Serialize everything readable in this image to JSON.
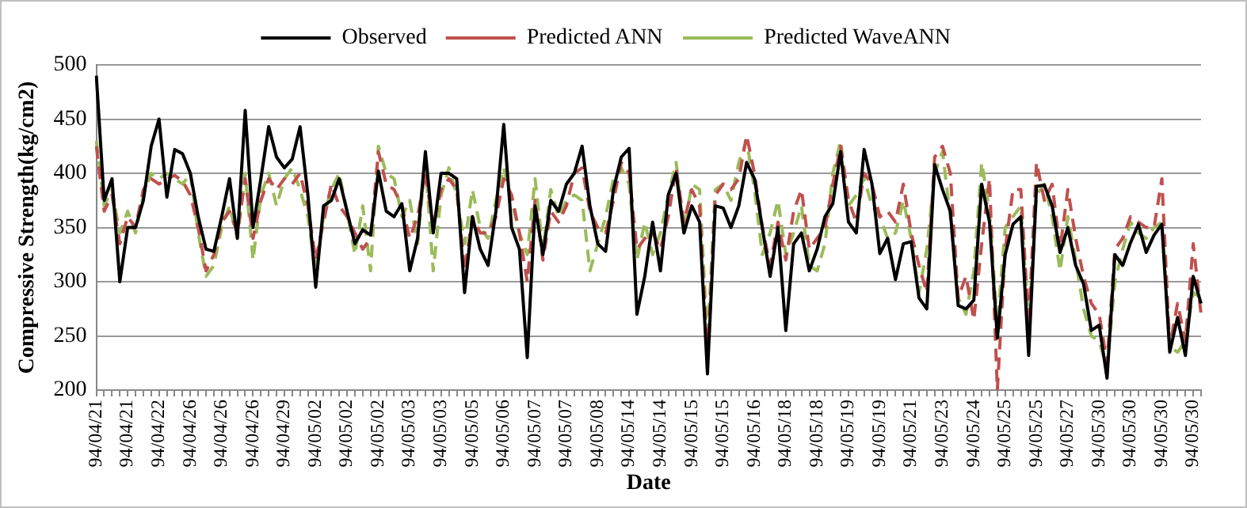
{
  "chart_data": {
    "type": "line",
    "xlabel": "Date",
    "ylabel": "Compressive Strength(kg/cm2)",
    "categories": [
      "94/04/21",
      null,
      null,
      null,
      "94/04/21",
      null,
      null,
      null,
      "94/04/22",
      null,
      null,
      null,
      "94/04/26",
      null,
      null,
      null,
      "94/04/26",
      null,
      null,
      null,
      "94/04/26",
      null,
      null,
      null,
      "94/04/29",
      null,
      null,
      null,
      "94/05/02",
      null,
      null,
      null,
      "94/05/02",
      null,
      null,
      null,
      "94/05/02",
      null,
      null,
      null,
      "94/05/03",
      null,
      null,
      null,
      "94/05/03",
      null,
      null,
      null,
      "94/05/05",
      null,
      null,
      null,
      "94/05/06",
      null,
      null,
      null,
      "94/05/07",
      null,
      null,
      null,
      "94/05/07",
      null,
      null,
      null,
      "94/05/08",
      null,
      null,
      null,
      "94/05/14",
      null,
      null,
      null,
      "94/05/14",
      null,
      null,
      null,
      "94/05/15",
      null,
      null,
      null,
      "94/05/15",
      null,
      null,
      null,
      "94/05/16",
      null,
      null,
      null,
      "94/05/18",
      null,
      null,
      null,
      "94/05/18",
      null,
      null,
      null,
      "94/05/19",
      null,
      null,
      null,
      "94/05/19",
      null,
      null,
      null,
      "94/05/21",
      null,
      null,
      null,
      "94/05/23",
      null,
      null,
      null,
      "94/05/24",
      null,
      null,
      null,
      "94/05/25",
      null,
      null,
      null,
      "94/05/25",
      null,
      null,
      null,
      "94/05/27",
      null,
      null,
      null,
      "94/05/30",
      null,
      null,
      null,
      "94/05/30",
      null,
      null,
      null,
      "94/05/30",
      null,
      null,
      null,
      "94/05/30",
      null
    ],
    "series": [
      {
        "name": "Observed",
        "color": "#000000",
        "line_style": "solid",
        "values": [
          490,
          375,
          395,
          300,
          350,
          350,
          375,
          425,
          450,
          378,
          422,
          418,
          400,
          360,
          330,
          328,
          360,
          395,
          340,
          458,
          350,
          395,
          443,
          415,
          405,
          413,
          443,
          380,
          295,
          370,
          375,
          395,
          365,
          335,
          348,
          343,
          402,
          365,
          360,
          372,
          310,
          340,
          420,
          345,
          400,
          400,
          395,
          290,
          360,
          330,
          315,
          365,
          445,
          350,
          330,
          230,
          370,
          325,
          375,
          365,
          390,
          400,
          425,
          370,
          335,
          328,
          385,
          415,
          423,
          270,
          305,
          355,
          310,
          380,
          400,
          345,
          370,
          355,
          215,
          370,
          368,
          350,
          370,
          410,
          395,
          350,
          305,
          350,
          255,
          335,
          345,
          310,
          330,
          360,
          372,
          420,
          355,
          345,
          422,
          390,
          326,
          340,
          302,
          335,
          337,
          285,
          275,
          408,
          385,
          365,
          278,
          275,
          283,
          390,
          355,
          248,
          325,
          353,
          360,
          232,
          388,
          389,
          370,
          327,
          350,
          315,
          298,
          255,
          260,
          211,
          325,
          315,
          336,
          353,
          327,
          343,
          353,
          235,
          267,
          232,
          305,
          280
        ]
      },
      {
        "name": "Predicted ANN",
        "color": "#c0504d",
        "line_style": "dashed",
        "values": [
          425,
          365,
          380,
          335,
          360,
          350,
          385,
          395,
          390,
          395,
          398,
          393,
          380,
          350,
          310,
          325,
          355,
          365,
          345,
          395,
          340,
          375,
          395,
          385,
          395,
          390,
          400,
          370,
          320,
          355,
          390,
          370,
          360,
          345,
          330,
          340,
          420,
          390,
          385,
          370,
          340,
          360,
          400,
          350,
          385,
          395,
          385,
          310,
          360,
          345,
          345,
          360,
          395,
          380,
          345,
          300,
          375,
          320,
          365,
          355,
          370,
          400,
          405,
          365,
          350,
          345,
          375,
          410,
          400,
          330,
          340,
          345,
          330,
          360,
          405,
          355,
          385,
          370,
          225,
          380,
          390,
          385,
          395,
          435,
          400,
          350,
          315,
          355,
          320,
          365,
          385,
          330,
          340,
          350,
          390,
          425,
          375,
          355,
          400,
          390,
          360,
          365,
          355,
          390,
          345,
          315,
          290,
          415,
          425,
          400,
          285,
          305,
          265,
          335,
          395,
          200,
          330,
          385,
          385,
          260,
          410,
          375,
          390,
          330,
          385,
          340,
          305,
          280,
          270,
          225,
          330,
          340,
          360,
          355,
          350,
          350,
          395,
          240,
          280,
          245,
          335,
          270
        ]
      },
      {
        "name": "Predicted WaveANN",
        "color": "#9bbb59",
        "line_style": "dashed",
        "values": [
          430,
          370,
          385,
          345,
          365,
          345,
          380,
          400,
          395,
          400,
          395,
          390,
          400,
          345,
          305,
          315,
          350,
          370,
          340,
          400,
          320,
          380,
          400,
          370,
          395,
          405,
          385,
          360,
          310,
          360,
          385,
          400,
          365,
          325,
          370,
          310,
          425,
          400,
          395,
          360,
          375,
          335,
          410,
          310,
          380,
          405,
          380,
          335,
          385,
          350,
          340,
          375,
          405,
          375,
          345,
          325,
          395,
          330,
          385,
          360,
          375,
          380,
          375,
          310,
          335,
          360,
          395,
          405,
          390,
          320,
          355,
          325,
          345,
          380,
          410,
          345,
          390,
          385,
          245,
          385,
          390,
          375,
          410,
          430,
          385,
          325,
          345,
          375,
          325,
          345,
          370,
          315,
          310,
          335,
          400,
          430,
          370,
          380,
          395,
          370,
          360,
          340,
          345,
          375,
          340,
          290,
          330,
          400,
          420,
          360,
          285,
          270,
          310,
          410,
          365,
          260,
          350,
          360,
          370,
          260,
          380,
          390,
          360,
          310,
          360,
          320,
          275,
          250,
          245,
          220,
          300,
          330,
          355,
          345,
          340,
          350,
          355,
          240,
          235,
          245,
          290,
          285
        ]
      }
    ],
    "ylim": [
      200,
      500
    ],
    "yticks": [
      200,
      250,
      300,
      350,
      400,
      450,
      500
    ],
    "grid": "y",
    "legend": "top",
    "marker": "none"
  }
}
